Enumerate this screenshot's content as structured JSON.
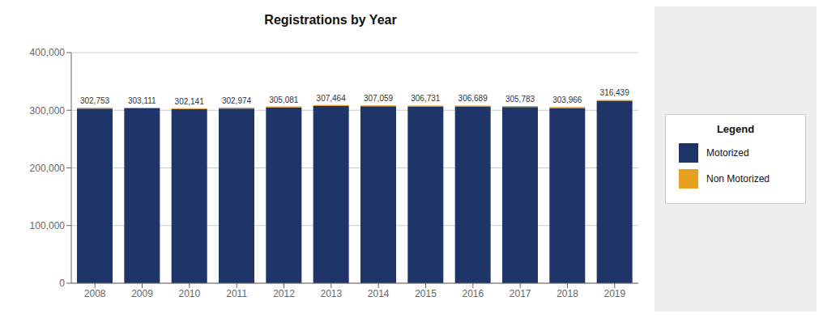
{
  "chart_data": {
    "type": "bar",
    "title": "Registrations by Year",
    "categories": [
      "2008",
      "2009",
      "2010",
      "2011",
      "2012",
      "2013",
      "2014",
      "2015",
      "2016",
      "2017",
      "2018",
      "2019"
    ],
    "series": [
      {
        "name": "Motorized",
        "color": "#1F3468",
        "values": [
          302753,
          303111,
          302141,
          302974,
          305081,
          307464,
          307059,
          306731,
          306689,
          305783,
          303966,
          316439
        ],
        "value_labels": [
          "302,753",
          "303,111",
          "302,141",
          "302,974",
          "305,081",
          "307,464",
          "307,059",
          "306,731",
          "306,689",
          "305,783",
          "303,966",
          "316,439"
        ]
      },
      {
        "name": "Non Motorized",
        "color": "#E8A020",
        "values": [
          1500,
          1500,
          1500,
          1500,
          1500,
          1500,
          1500,
          1500,
          1500,
          1500,
          1500,
          1500
        ]
      }
    ],
    "stacked": true,
    "data_labels": true,
    "ylim": [
      0,
      400000
    ],
    "yticks": [
      0,
      {
        "value": 100000,
        "label": "100,000"
      },
      {
        "value": 200000,
        "label": "200,000"
      },
      {
        "value": 300000,
        "label": "300,000"
      },
      {
        "value": 400000,
        "label": "400,000"
      }
    ],
    "grid": true,
    "legend": "right",
    "legend_title": "Legend"
  }
}
